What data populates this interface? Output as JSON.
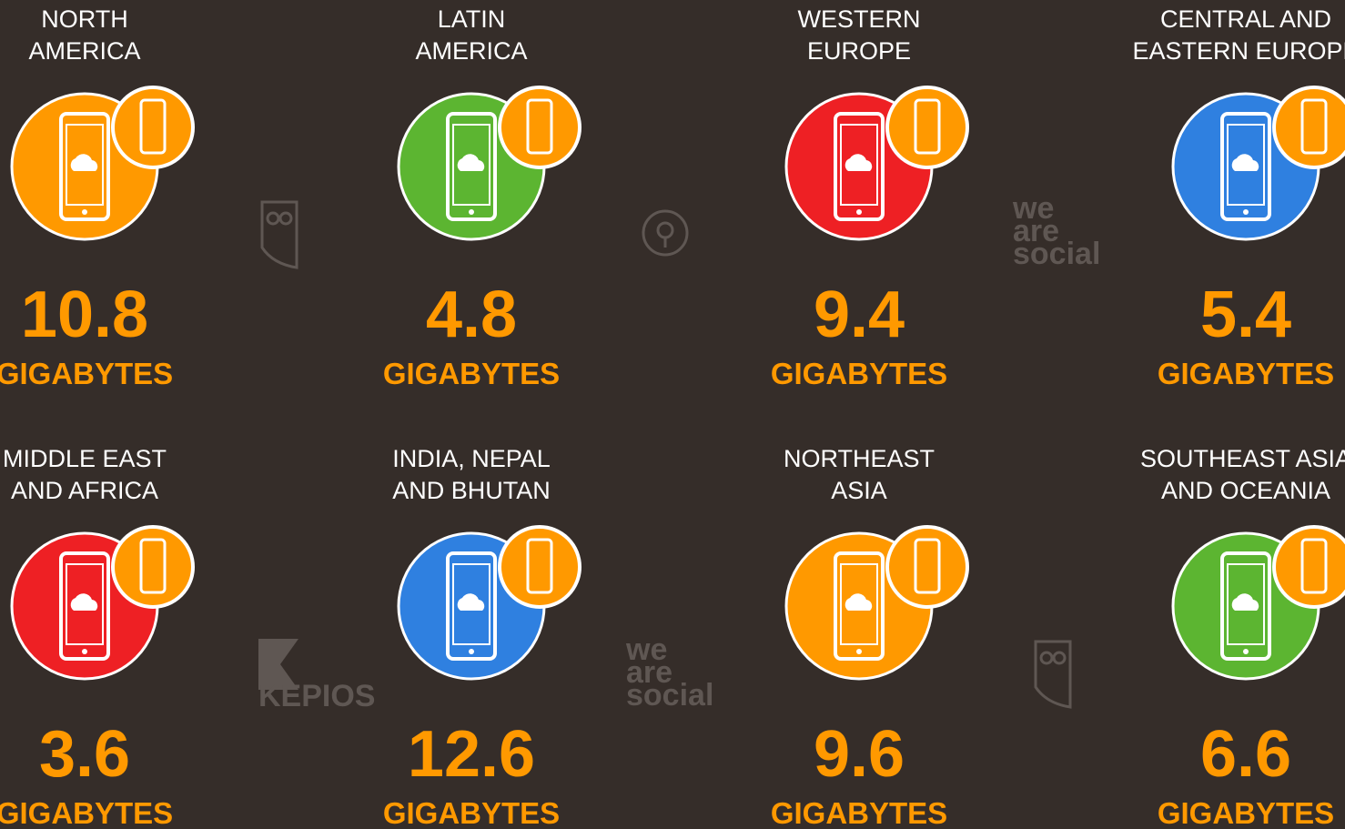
{
  "regions": [
    {
      "lines": [
        "NORTH",
        "AMERICA"
      ],
      "value": "10.8",
      "unit": "GIGABYTES",
      "color": "#ff9900"
    },
    {
      "lines": [
        "LATIN",
        "AMERICA"
      ],
      "value": "4.8",
      "unit": "GIGABYTES",
      "color": "#5cb531"
    },
    {
      "lines": [
        "WESTERN",
        "EUROPE"
      ],
      "value": "9.4",
      "unit": "GIGABYTES",
      "color": "#ee2024"
    },
    {
      "lines": [
        "CENTRAL AND",
        "EASTERN EUROPE"
      ],
      "value": "5.4",
      "unit": "GIGABYTES",
      "color": "#2f80e0"
    },
    {
      "lines": [
        "MIDDLE EAST",
        "AND AFRICA"
      ],
      "value": "3.6",
      "unit": "GIGABYTES",
      "color": "#ee2024"
    },
    {
      "lines": [
        "INDIA, NEPAL",
        "AND BHUTAN"
      ],
      "value": "12.6",
      "unit": "GIGABYTES",
      "color": "#2f80e0"
    },
    {
      "lines": [
        "NORTHEAST",
        "ASIA"
      ],
      "value": "9.6",
      "unit": "GIGABYTES",
      "color": "#ff9900"
    },
    {
      "lines": [
        "SOUTHEAST ASIA",
        "AND OCEANIA"
      ],
      "value": "6.6",
      "unit": "GIGABYTES",
      "color": "#5cb531"
    }
  ],
  "logos": [
    {
      "lines": [
        "we",
        "are",
        "social"
      ]
    },
    {
      "lines": [
        "we",
        "are",
        "social"
      ]
    },
    {
      "lines": [
        "KEPIOS"
      ]
    }
  ]
}
